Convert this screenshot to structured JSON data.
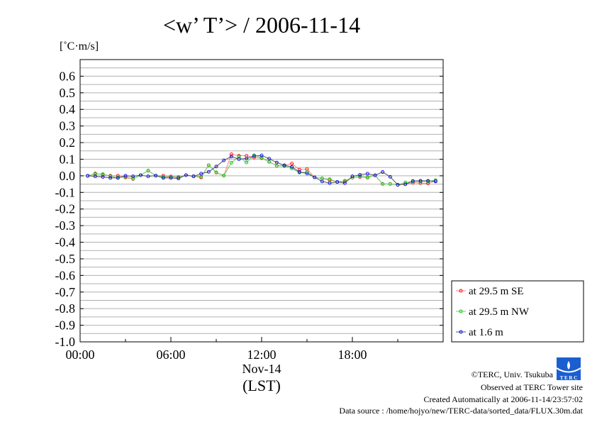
{
  "chart_data": {
    "type": "line",
    "title": "<w’ T’> / 2006-11-14",
    "ylabel": "[˚C·m/s]",
    "xlabel": "(LST)",
    "date_label": "Nov-14",
    "ylim": [
      -1.0,
      0.7
    ],
    "xlim_hours": [
      0,
      24
    ],
    "grid": true,
    "legend_placement": "bottom-right outside",
    "y_ticks": [
      "0.6",
      "0.5",
      "0.4",
      "0.3",
      "0.2",
      "0.1",
      "0.0",
      "-0.1",
      "-0.2",
      "-0.3",
      "-0.4",
      "-0.5",
      "-0.6",
      "-0.7",
      "-0.8",
      "-0.9",
      "-1.0"
    ],
    "y_tick_values": [
      0.6,
      0.5,
      0.4,
      0.3,
      0.2,
      0.1,
      0.0,
      -0.1,
      -0.2,
      -0.3,
      -0.4,
      -0.5,
      -0.6,
      -0.7,
      -0.8,
      -0.9,
      -1.0
    ],
    "x_ticks": [
      "00:00",
      "06:00",
      "12:00",
      "18:00"
    ],
    "x_tick_values": [
      0,
      6,
      12,
      18
    ],
    "x_hours": [
      0.5,
      1,
      1.5,
      2,
      2.5,
      3,
      3.5,
      4,
      4.5,
      5,
      5.5,
      6,
      6.5,
      7,
      7.5,
      8,
      8.5,
      9,
      9.5,
      10,
      10.5,
      11,
      11.5,
      12,
      12.5,
      13,
      13.5,
      14,
      14.5,
      15,
      15.5,
      16,
      16.5,
      17,
      17.5,
      18,
      18.5,
      19,
      19.5,
      20,
      20.5,
      21,
      21.5,
      22,
      22.5,
      23,
      23.5
    ],
    "series": [
      {
        "name": "at 29.5 m SE",
        "color": "#ff0000",
        "line_color": "#ff8080",
        "values": [
          0,
          0.014,
          0.007,
          0,
          0,
          -0.01,
          -0.019,
          0.004,
          0.031,
          0.001,
          0,
          -0.004,
          -0.007,
          0.004,
          -0.003,
          -0.01,
          0.064,
          0.019,
          0.001,
          0.13,
          0.121,
          0.121,
          0.11,
          0.106,
          0.084,
          0.061,
          0.063,
          0.074,
          0.037,
          0.04,
          -0.009,
          -0.016,
          -0.026,
          -0.037,
          -0.034,
          -0.011,
          -0.007,
          -0.011,
          0.003,
          -0.049,
          -0.049,
          -0.054,
          -0.051,
          -0.041,
          -0.044,
          -0.046,
          -0.031
        ]
      },
      {
        "name": "at 29.5 m NW",
        "color": "#00cc00",
        "line_color": "#66cc66",
        "values": [
          0,
          0.011,
          0.01,
          -0.003,
          -0.01,
          -0.007,
          -0.017,
          0.004,
          0.031,
          0.001,
          -0.007,
          -0.007,
          -0.01,
          0.004,
          -0.003,
          -0.006,
          0.064,
          0.021,
          0.001,
          0.079,
          0.116,
          0.08,
          0.124,
          0.109,
          0.084,
          0.061,
          0.059,
          0.044,
          0.019,
          0.023,
          -0.009,
          -0.016,
          -0.02,
          -0.037,
          -0.03,
          -0.011,
          -0.004,
          -0.009,
          0.003,
          -0.049,
          -0.049,
          -0.054,
          -0.04,
          -0.034,
          -0.034,
          -0.034,
          -0.026
        ]
      },
      {
        "name": "at 1.6 m",
        "color": "#0000ff",
        "line_color": "#555555",
        "values": [
          0,
          -0.003,
          -0.007,
          -0.013,
          -0.013,
          0,
          -0.003,
          0.004,
          -0.003,
          0.001,
          -0.013,
          -0.013,
          -0.016,
          0.004,
          -0.003,
          0.013,
          0.024,
          0.056,
          0.093,
          0.116,
          0.1,
          0.104,
          0.119,
          0.123,
          0.103,
          0.08,
          0.063,
          0.054,
          0.023,
          0.014,
          -0.009,
          -0.034,
          -0.044,
          -0.037,
          -0.044,
          -0.003,
          0.006,
          0.013,
          0.003,
          0.023,
          -0.006,
          -0.054,
          -0.051,
          -0.031,
          -0.03,
          -0.03,
          -0.034
        ]
      }
    ]
  },
  "footer": {
    "copyright": "©TERC, Univ. Tsukuba",
    "observed": "Observed at TERC Tower site",
    "created": "Created Automatically at 2006-11-14/23:57:02",
    "source": "Data source : /home/hojyo/new/TERC-data/sorted_data/FLUX.30m.dat",
    "logo_text": "TERC"
  }
}
